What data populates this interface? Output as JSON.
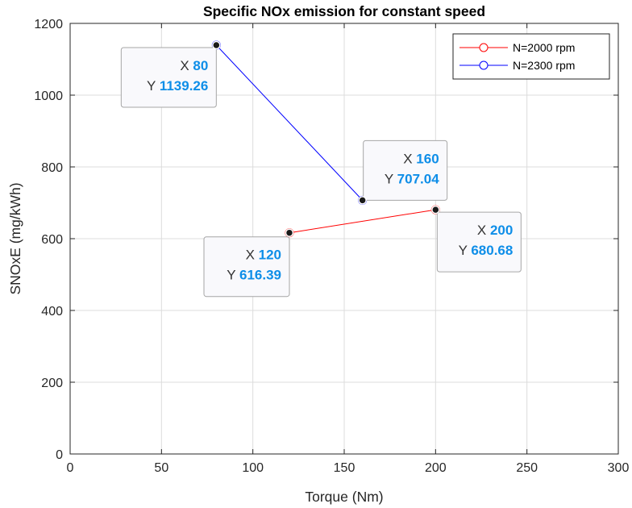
{
  "chart_data": {
    "type": "line",
    "title": "Specific NOx emission for constant speed",
    "xlabel": "Torque (Nm)",
    "ylabel": "SNOxE (mg/kWh)",
    "xlim": [
      0,
      300
    ],
    "ylim": [
      0,
      1200
    ],
    "xticks": [
      0,
      50,
      100,
      150,
      200,
      250,
      300
    ],
    "yticks": [
      0,
      200,
      400,
      600,
      800,
      1000,
      1200
    ],
    "grid": true,
    "legend_position": "top-right",
    "series": [
      {
        "name": "N=2000 rpm",
        "color": "#ff0000",
        "x": [
          120,
          200
        ],
        "y": [
          616.39,
          680.68
        ]
      },
      {
        "name": "N=2300 rpm",
        "color": "#0000ff",
        "x": [
          80,
          160
        ],
        "y": [
          1139.26,
          707.04
        ]
      }
    ],
    "datatips": [
      {
        "x_label": "X",
        "y_label": "Y",
        "x": "80",
        "y": "1139.26",
        "series": 1,
        "point": 0
      },
      {
        "x_label": "X",
        "y_label": "Y",
        "x": "160",
        "y": "707.04",
        "series": 1,
        "point": 1
      },
      {
        "x_label": "X",
        "y_label": "Y",
        "x": "120",
        "y": "616.39",
        "series": 0,
        "point": 0
      },
      {
        "x_label": "X",
        "y_label": "Y",
        "x": "200",
        "y": "680.68",
        "series": 0,
        "point": 1
      }
    ]
  }
}
